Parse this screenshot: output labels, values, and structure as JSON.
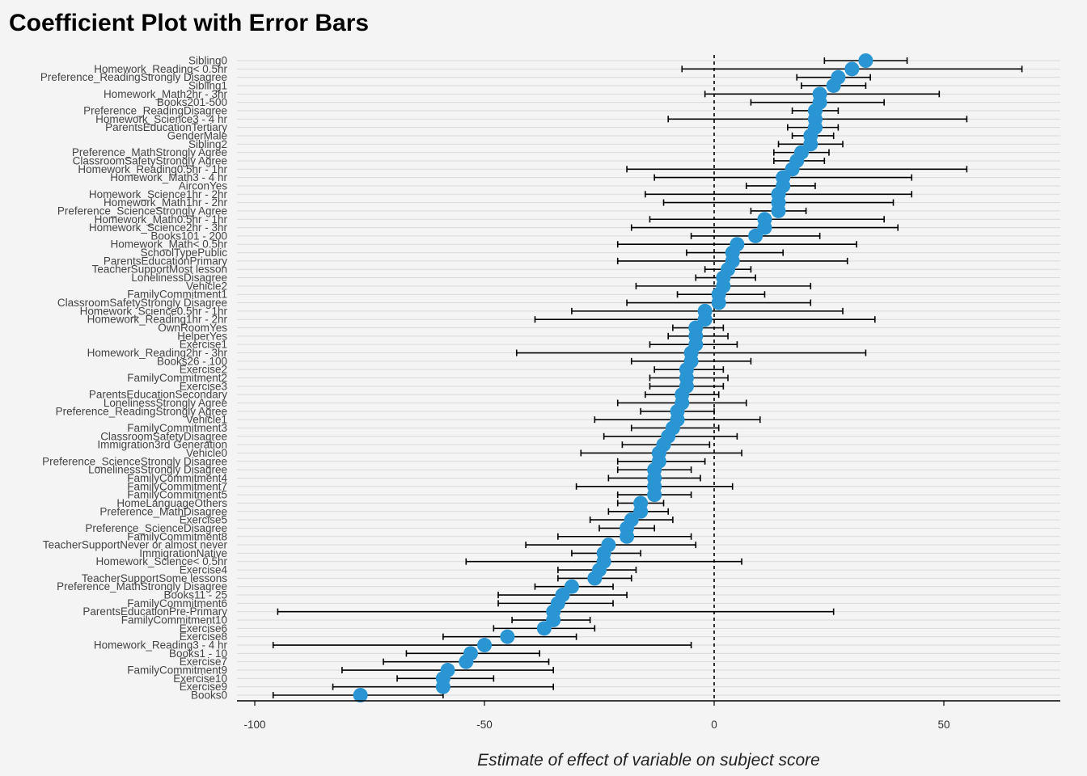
{
  "chart_data": {
    "type": "scatter",
    "title": "Coefficient Plot with Error Bars",
    "xlabel": "Estimate of effect of variable on subject score",
    "ylabel": "",
    "xlim": [
      -100,
      75
    ],
    "xticks": [
      -100,
      -50,
      0,
      50
    ],
    "xtick_labels": [
      "-100",
      "-50",
      "0",
      "50"
    ],
    "reference_line": 0,
    "grid": "horizontal",
    "point_color": "#2a95d3",
    "errorbar_color": "#000000",
    "series": [
      {
        "values": [
          {
            "label": "Sibling0",
            "estimate": 33,
            "lo": 24,
            "hi": 42
          },
          {
            "label": "Homework_Reading< 0.5hr",
            "estimate": 30,
            "lo": -7,
            "hi": 67
          },
          {
            "label": "Preference_ReadingStrongly Disagree",
            "estimate": 27,
            "lo": 18,
            "hi": 34
          },
          {
            "label": "Sibling1",
            "estimate": 26,
            "lo": 19,
            "hi": 33
          },
          {
            "label": "Homework_Math2hr - 3hr",
            "estimate": 23,
            "lo": -2,
            "hi": 49
          },
          {
            "label": "Books201-500",
            "estimate": 23,
            "lo": 8,
            "hi": 37
          },
          {
            "label": "Preference_ReadingDisagree",
            "estimate": 22,
            "lo": 17,
            "hi": 27
          },
          {
            "label": "Homework_Science3 - 4 hr",
            "estimate": 22,
            "lo": -10,
            "hi": 55
          },
          {
            "label": "ParentsEducationTertiary",
            "estimate": 22,
            "lo": 16,
            "hi": 27
          },
          {
            "label": "GenderMale",
            "estimate": 21,
            "lo": 17,
            "hi": 26
          },
          {
            "label": "Sibling2",
            "estimate": 21,
            "lo": 14,
            "hi": 28
          },
          {
            "label": "Preference_MathStrongly Agree",
            "estimate": 19,
            "lo": 13,
            "hi": 25
          },
          {
            "label": "ClassroomSafetyStrongly Agree",
            "estimate": 18,
            "lo": 13,
            "hi": 24
          },
          {
            "label": "Homework_Reading0.5hr - 1hr",
            "estimate": 17,
            "lo": -19,
            "hi": 55
          },
          {
            "label": "Homework_Math3 - 4 hr",
            "estimate": 15,
            "lo": -13,
            "hi": 43
          },
          {
            "label": "AirconYes",
            "estimate": 15,
            "lo": 7,
            "hi": 22
          },
          {
            "label": "Homework_Science1hr - 2hr",
            "estimate": 14,
            "lo": -15,
            "hi": 43
          },
          {
            "label": "Homework_Math1hr - 2hr",
            "estimate": 14,
            "lo": -11,
            "hi": 39
          },
          {
            "label": "Preference_ScienceStrongly Agree",
            "estimate": 14,
            "lo": 8,
            "hi": 20
          },
          {
            "label": "Homework_Math0.5hr - 1hr",
            "estimate": 11,
            "lo": -14,
            "hi": 37
          },
          {
            "label": "Homework_Science2hr - 3hr",
            "estimate": 11,
            "lo": -18,
            "hi": 40
          },
          {
            "label": "Books101 - 200",
            "estimate": 9,
            "lo": -5,
            "hi": 23
          },
          {
            "label": "Homework_Math< 0.5hr",
            "estimate": 5,
            "lo": -21,
            "hi": 31
          },
          {
            "label": "SchoolTypePublic",
            "estimate": 4,
            "lo": -6,
            "hi": 15
          },
          {
            "label": "ParentsEducationPrimary",
            "estimate": 4,
            "lo": -21,
            "hi": 29
          },
          {
            "label": "TeacherSupportMost lesson",
            "estimate": 3,
            "lo": -2,
            "hi": 8
          },
          {
            "label": "LonelinessDisagree",
            "estimate": 2,
            "lo": -4,
            "hi": 9
          },
          {
            "label": "Vehicle2",
            "estimate": 2,
            "lo": -17,
            "hi": 21
          },
          {
            "label": "FamilyCommitment1",
            "estimate": 1,
            "lo": -8,
            "hi": 11
          },
          {
            "label": "ClassroomSafetyStrongly Disagree",
            "estimate": 1,
            "lo": -19,
            "hi": 21
          },
          {
            "label": "Homework_Science0.5hr - 1hr",
            "estimate": -2,
            "lo": -31,
            "hi": 28
          },
          {
            "label": "Homework_Reading1hr - 2hr",
            "estimate": -2,
            "lo": -39,
            "hi": 35
          },
          {
            "label": "OwnRoomYes",
            "estimate": -4,
            "lo": -9,
            "hi": 2
          },
          {
            "label": "HelperYes",
            "estimate": -4,
            "lo": -10,
            "hi": 3
          },
          {
            "label": "Exercise1",
            "estimate": -4,
            "lo": -14,
            "hi": 5
          },
          {
            "label": "Homework_Reading2hr - 3hr",
            "estimate": -5,
            "lo": -43,
            "hi": 33
          },
          {
            "label": "Books26 - 100",
            "estimate": -5,
            "lo": -18,
            "hi": 8
          },
          {
            "label": "Exercise2",
            "estimate": -6,
            "lo": -13,
            "hi": 2
          },
          {
            "label": "FamilyCommitment2",
            "estimate": -6,
            "lo": -14,
            "hi": 3
          },
          {
            "label": "Exercise3",
            "estimate": -6,
            "lo": -14,
            "hi": 2
          },
          {
            "label": "ParentsEducationSecondary",
            "estimate": -7,
            "lo": -15,
            "hi": 1
          },
          {
            "label": "LonelinessStrongly Agree",
            "estimate": -7,
            "lo": -21,
            "hi": 7
          },
          {
            "label": "Preference_ReadingStrongly Agree",
            "estimate": -8,
            "lo": -16,
            "hi": 0
          },
          {
            "label": "Vehicle1",
            "estimate": -8,
            "lo": -26,
            "hi": 10
          },
          {
            "label": "FamilyCommitment3",
            "estimate": -9,
            "lo": -18,
            "hi": 1
          },
          {
            "label": "ClassroomSafetyDisagree",
            "estimate": -10,
            "lo": -24,
            "hi": 5
          },
          {
            "label": "Immigration3rd Generation",
            "estimate": -11,
            "lo": -20,
            "hi": -1
          },
          {
            "label": "Vehicle0",
            "estimate": -12,
            "lo": -29,
            "hi": 6
          },
          {
            "label": "Preference_ScienceStrongly Disagree",
            "estimate": -12,
            "lo": -21,
            "hi": -2
          },
          {
            "label": "LonelinessStrongly Disagree",
            "estimate": -13,
            "lo": -21,
            "hi": -5
          },
          {
            "label": "FamilyCommitment4",
            "estimate": -13,
            "lo": -23,
            "hi": -3
          },
          {
            "label": "FamilyCommitment7",
            "estimate": -13,
            "lo": -30,
            "hi": 4
          },
          {
            "label": "FamilyCommitment5",
            "estimate": -13,
            "lo": -21,
            "hi": -5
          },
          {
            "label": "HomeLanguageOthers",
            "estimate": -16,
            "lo": -21,
            "hi": -11
          },
          {
            "label": "Preference_MathDisagree",
            "estimate": -16,
            "lo": -23,
            "hi": -10
          },
          {
            "label": "Exercise5",
            "estimate": -18,
            "lo": -27,
            "hi": -9
          },
          {
            "label": "Preference_ScienceDisagree",
            "estimate": -19,
            "lo": -25,
            "hi": -13
          },
          {
            "label": "FamilyCommitment8",
            "estimate": -19,
            "lo": -34,
            "hi": -5
          },
          {
            "label": "TeacherSupportNever or almost never",
            "estimate": -23,
            "lo": -41,
            "hi": -4
          },
          {
            "label": "ImmigrationNative",
            "estimate": -24,
            "lo": -31,
            "hi": -16
          },
          {
            "label": "Homework_Science< 0.5hr",
            "estimate": -24,
            "lo": -54,
            "hi": 6
          },
          {
            "label": "Exercise4",
            "estimate": -25,
            "lo": -34,
            "hi": -17
          },
          {
            "label": "TeacherSupportSome lessons",
            "estimate": -26,
            "lo": -34,
            "hi": -18
          },
          {
            "label": "Preference_MathStrongly Disagree",
            "estimate": -31,
            "lo": -39,
            "hi": -22
          },
          {
            "label": "Books11 - 25",
            "estimate": -33,
            "lo": -47,
            "hi": -19
          },
          {
            "label": "FamilyCommitment6",
            "estimate": -34,
            "lo": -47,
            "hi": -22
          },
          {
            "label": "ParentsEducationPre-Primary",
            "estimate": -35,
            "lo": -95,
            "hi": 26
          },
          {
            "label": "FamilyCommitment10",
            "estimate": -35,
            "lo": -44,
            "hi": -27
          },
          {
            "label": "Exercise6",
            "estimate": -37,
            "lo": -48,
            "hi": -26
          },
          {
            "label": "Exercise8",
            "estimate": -45,
            "lo": -59,
            "hi": -30
          },
          {
            "label": "Homework_Reading3 - 4 hr",
            "estimate": -50,
            "lo": -96,
            "hi": -5
          },
          {
            "label": "Books1 - 10",
            "estimate": -53,
            "lo": -67,
            "hi": -38
          },
          {
            "label": "Exercise7",
            "estimate": -54,
            "lo": -72,
            "hi": -36
          },
          {
            "label": "FamilyCommitment9",
            "estimate": -58,
            "lo": -81,
            "hi": -35
          },
          {
            "label": "Exercise10",
            "estimate": -59,
            "lo": -69,
            "hi": -48
          },
          {
            "label": "Exercise9",
            "estimate": -59,
            "lo": -83,
            "hi": -35
          },
          {
            "label": "Books0",
            "estimate": -77,
            "lo": -96,
            "hi": -59
          }
        ]
      }
    ]
  }
}
